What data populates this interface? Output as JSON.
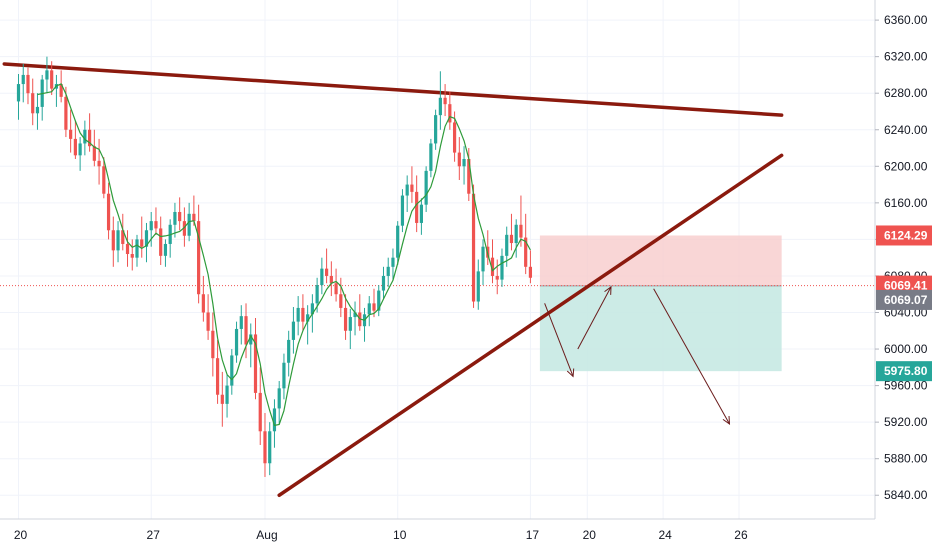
{
  "colors": {
    "up": "#26a69a",
    "down": "#ef5350",
    "ma": "#2e9b3a",
    "trendline": "#8b1a0e",
    "grid": "#f0f3fa",
    "axis_text": "#131722",
    "stop_zone": "#f7cccc",
    "target_zone": "#c7e9e3",
    "current_price_line": "#ef5350",
    "arrow": "#6b1c1c"
  },
  "chart_data": {
    "type": "candlestick",
    "title": "",
    "xlabel": "",
    "ylabel": "",
    "ylim": [
      5814,
      6382
    ],
    "y_ticks": [
      "5840.00",
      "5880.00",
      "5920.00",
      "5960.00",
      "6000.00",
      "6040.00",
      "6080.00",
      "6120.00",
      "6160.00",
      "6200.00",
      "6240.00",
      "6280.00",
      "6320.00",
      "6360.00"
    ],
    "x_ticks": [
      {
        "label": "20",
        "bar": 0
      },
      {
        "label": "27",
        "bar": 28
      },
      {
        "label": "Aug",
        "bar": 52
      },
      {
        "label": "10",
        "bar": 80
      },
      {
        "label": "17",
        "bar": 108
      },
      {
        "label": "20",
        "bar": 120
      },
      {
        "label": "24",
        "bar": 136
      },
      {
        "label": "26",
        "bar": 152
      }
    ],
    "candles": [
      [
        6271,
        6301,
        6251,
        6290
      ],
      [
        6290,
        6312,
        6270,
        6300
      ],
      [
        6300,
        6308,
        6268,
        6280
      ],
      [
        6280,
        6296,
        6245,
        6258
      ],
      [
        6258,
        6280,
        6240,
        6265
      ],
      [
        6265,
        6300,
        6250,
        6295
      ],
      [
        6295,
        6320,
        6280,
        6305
      ],
      [
        6305,
        6315,
        6278,
        6285
      ],
      [
        6285,
        6300,
        6265,
        6290
      ],
      [
        6290,
        6305,
        6270,
        6276
      ],
      [
        6276,
        6287,
        6232,
        6240
      ],
      [
        6240,
        6262,
        6215,
        6230
      ],
      [
        6230,
        6250,
        6208,
        6212
      ],
      [
        6212,
        6232,
        6195,
        6225
      ],
      [
        6225,
        6250,
        6212,
        6240
      ],
      [
        6240,
        6258,
        6216,
        6222
      ],
      [
        6222,
        6240,
        6200,
        6206
      ],
      [
        6206,
        6230,
        6180,
        6200
      ],
      [
        6200,
        6210,
        6165,
        6170
      ],
      [
        6170,
        6182,
        6120,
        6130
      ],
      [
        6130,
        6145,
        6090,
        6108
      ],
      [
        6108,
        6140,
        6095,
        6130
      ],
      [
        6130,
        6148,
        6108,
        6115
      ],
      [
        6115,
        6130,
        6090,
        6104
      ],
      [
        6104,
        6120,
        6086,
        6100
      ],
      [
        6100,
        6125,
        6090,
        6120
      ],
      [
        6120,
        6145,
        6100,
        6112
      ],
      [
        6112,
        6138,
        6095,
        6130
      ],
      [
        6130,
        6150,
        6112,
        6140
      ],
      [
        6140,
        6155,
        6125,
        6132
      ],
      [
        6132,
        6145,
        6092,
        6102
      ],
      [
        6102,
        6120,
        6090,
        6115
      ],
      [
        6115,
        6142,
        6100,
        6136
      ],
      [
        6136,
        6160,
        6122,
        6150
      ],
      [
        6150,
        6166,
        6130,
        6140
      ],
      [
        6140,
        6155,
        6112,
        6124
      ],
      [
        6124,
        6160,
        6118,
        6148
      ],
      [
        6148,
        6168,
        6135,
        6140
      ],
      [
        6140,
        6158,
        6050,
        6060
      ],
      [
        6060,
        6080,
        6030,
        6040
      ],
      [
        6040,
        6060,
        6010,
        6020
      ],
      [
        6020,
        6040,
        5970,
        5990
      ],
      [
        5990,
        6010,
        5940,
        5950
      ],
      [
        5950,
        5975,
        5915,
        5940
      ],
      [
        5940,
        5972,
        5925,
        5960
      ],
      [
        5960,
        6000,
        5950,
        5993
      ],
      [
        5993,
        6030,
        5985,
        6022
      ],
      [
        6022,
        6048,
        6005,
        6036
      ],
      [
        6036,
        6050,
        5990,
        6005
      ],
      [
        6005,
        6028,
        5980,
        6016
      ],
      [
        6016,
        6034,
        5945,
        5952
      ],
      [
        5952,
        5980,
        5895,
        5910
      ],
      [
        5910,
        5930,
        5860,
        5875
      ],
      [
        5875,
        5920,
        5862,
        5910
      ],
      [
        5910,
        5945,
        5892,
        5935
      ],
      [
        5935,
        5965,
        5918,
        5957
      ],
      [
        5957,
        5995,
        5945,
        5985
      ],
      [
        5985,
        6020,
        5970,
        6010
      ],
      [
        6010,
        6046,
        5995,
        6030
      ],
      [
        6030,
        6058,
        6015,
        6045
      ],
      [
        6045,
        6060,
        6020,
        6030
      ],
      [
        6030,
        6048,
        6005,
        6038
      ],
      [
        6038,
        6060,
        6018,
        6050
      ],
      [
        6050,
        6078,
        6040,
        6070
      ],
      [
        6070,
        6100,
        6060,
        6088
      ],
      [
        6088,
        6110,
        6072,
        6080
      ],
      [
        6080,
        6096,
        6058,
        6072
      ],
      [
        6072,
        6088,
        6052,
        6060
      ],
      [
        6060,
        6078,
        6035,
        6045
      ],
      [
        6045,
        6060,
        6010,
        6020
      ],
      [
        6020,
        6044,
        6000,
        6035
      ],
      [
        6035,
        6052,
        6015,
        6040
      ],
      [
        6040,
        6060,
        6020,
        6025
      ],
      [
        6025,
        6045,
        6008,
        6038
      ],
      [
        6038,
        6058,
        6025,
        6050
      ],
      [
        6050,
        6066,
        6035,
        6042
      ],
      [
        6042,
        6070,
        6036,
        6064
      ],
      [
        6064,
        6090,
        6055,
        6080
      ],
      [
        6080,
        6100,
        6068,
        6090
      ],
      [
        6090,
        6110,
        6075,
        6100
      ],
      [
        6100,
        6140,
        6092,
        6135
      ],
      [
        6135,
        6175,
        6128,
        6168
      ],
      [
        6168,
        6190,
        6150,
        6180
      ],
      [
        6180,
        6200,
        6160,
        6172
      ],
      [
        6172,
        6190,
        6128,
        6138
      ],
      [
        6138,
        6165,
        6125,
        6158
      ],
      [
        6158,
        6200,
        6150,
        6195
      ],
      [
        6195,
        6230,
        6188,
        6225
      ],
      [
        6225,
        6262,
        6218,
        6256
      ],
      [
        6256,
        6304,
        6240,
        6275
      ],
      [
        6275,
        6290,
        6255,
        6268
      ],
      [
        6268,
        6282,
        6240,
        6248
      ],
      [
        6248,
        6260,
        6205,
        6215
      ],
      [
        6215,
        6232,
        6185,
        6200
      ],
      [
        6200,
        6222,
        6180,
        6208
      ],
      [
        6208,
        6220,
        6162,
        6170
      ],
      [
        6170,
        6180,
        6045,
        6052
      ],
      [
        6052,
        6098,
        6043,
        6085
      ],
      [
        6085,
        6120,
        6070,
        6112
      ],
      [
        6112,
        6130,
        6092,
        6100
      ],
      [
        6100,
        6120,
        6072,
        6080
      ],
      [
        6080,
        6098,
        6060,
        6076
      ],
      [
        6076,
        6110,
        6068,
        6102
      ],
      [
        6102,
        6134,
        6090,
        6125
      ],
      [
        6125,
        6148,
        6108,
        6116
      ],
      [
        6116,
        6142,
        6100,
        6136
      ],
      [
        6136,
        6168,
        6112,
        6122
      ],
      [
        6122,
        6148,
        6082,
        6090
      ],
      [
        6090,
        6108,
        6072,
        6078
      ]
    ],
    "current_price": "6069.41",
    "stop_level": "6124.29",
    "entry_level": "6069.07",
    "target_level": "5975.80",
    "trendlines": [
      {
        "from": [
          -3,
          6312
        ],
        "to": [
          161,
          6256
        ]
      },
      {
        "from": [
          55,
          5840
        ],
        "to": [
          161,
          6212
        ]
      }
    ],
    "position_box": {
      "from_bar": 110,
      "to_bar": 161,
      "top": 6124.29,
      "mid": 6069.07,
      "bottom": 5975.8
    },
    "arrows": [
      {
        "from": [
          111,
          6050
        ],
        "to": [
          117,
          5970
        ]
      },
      {
        "from": [
          118,
          6000
        ],
        "to": [
          125,
          6068
        ]
      },
      {
        "from": [
          134,
          6066
        ],
        "to": [
          150,
          5918
        ]
      }
    ]
  }
}
